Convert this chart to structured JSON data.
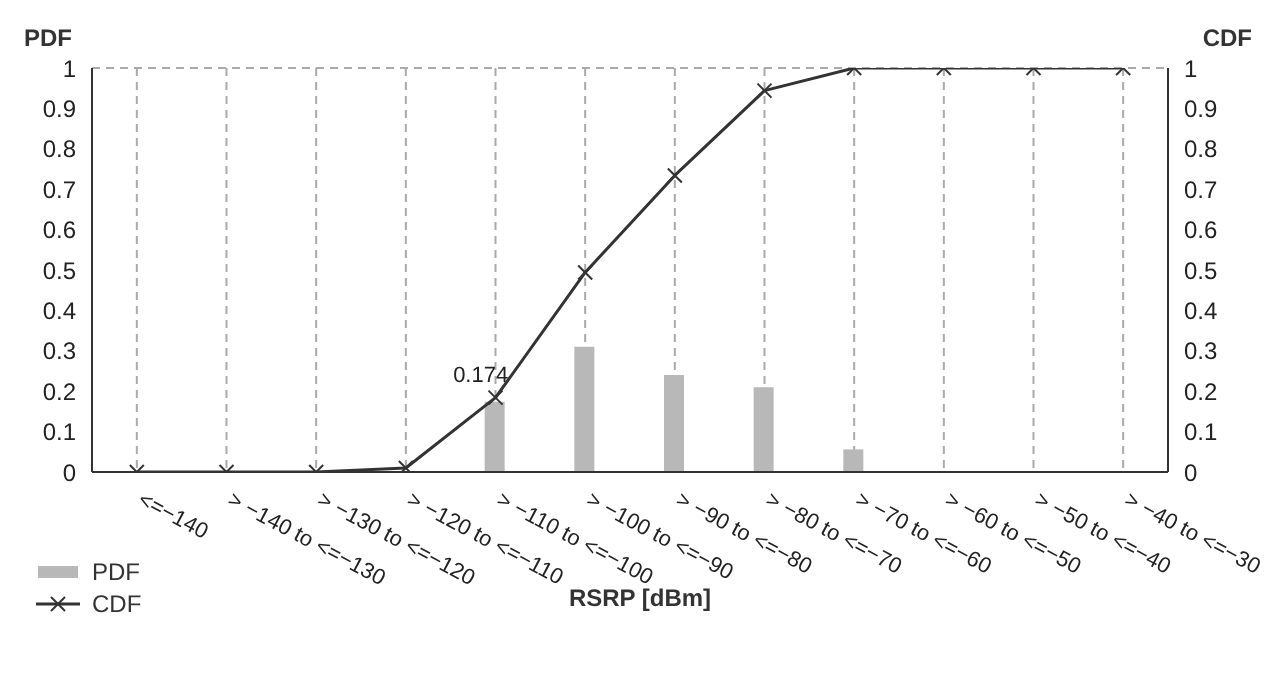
{
  "chart_data": {
    "type": "bar",
    "ylabel": "PDF",
    "y2label": "CDF",
    "xlabel": "RSRP [dBm]",
    "categories": [
      "<=−140",
      "> −140 to <=−130",
      "> −130 to <=−120",
      "> −120 to <=−110",
      "> −110 to <=−100",
      "> −100 to <=−90",
      "> −90 to <=−80",
      "> −80 to <=−70",
      "> −70 to <=−60",
      "> −60 to <=−50",
      "> −50 to <=−40",
      "> −40 to <=−30"
    ],
    "series": [
      {
        "name": "PDF",
        "color": "#b8b8b8",
        "values": [
          0,
          0,
          0,
          null,
          0.174,
          0.31,
          0.24,
          0.21,
          0.056,
          0,
          0,
          0
        ],
        "value_labels": [
          null,
          null,
          null,
          null,
          "0.174",
          null,
          null,
          null,
          null,
          null,
          null,
          null
        ]
      },
      {
        "name": "CDF",
        "type": "line",
        "axis": "y2",
        "color": "#333333",
        "marker": "cross",
        "values": [
          0,
          0,
          0,
          0.01,
          0.184,
          0.494,
          0.734,
          0.944,
          1,
          1,
          1,
          1
        ]
      }
    ],
    "ylim": [
      0,
      1
    ],
    "yticks": [
      0,
      0.1,
      0.2,
      0.3,
      0.4,
      0.5,
      0.6,
      0.7,
      0.8,
      0.9,
      1
    ],
    "y2lim": [
      0,
      1
    ],
    "y2ticks": [
      0,
      0.1,
      0.2,
      0.3,
      0.4,
      0.5,
      0.6,
      0.7,
      0.8,
      0.9,
      1
    ],
    "grid": true,
    "legend": "bottom left"
  }
}
